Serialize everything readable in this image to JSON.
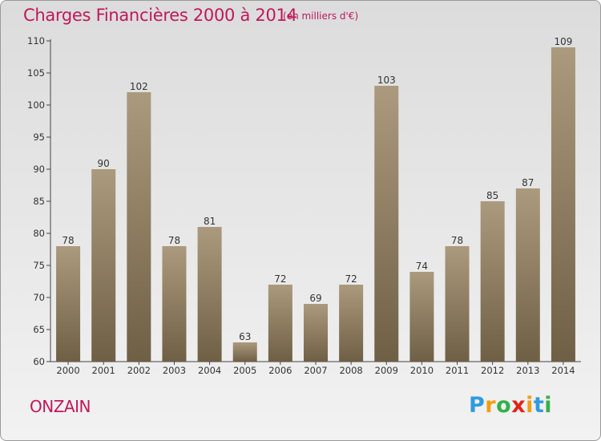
{
  "title": "Charges Financières 2000 à 2014",
  "unit": "(en milliers d'€)",
  "commune": "ONZAIN",
  "logo": {
    "letters": [
      "P",
      "r",
      "o",
      "x",
      "i",
      "t",
      "i"
    ],
    "colors": [
      "#2f9be0",
      "#f39c12",
      "#35b04a",
      "#e2231a",
      "#f39c12",
      "#2f9be0",
      "#35b04a"
    ]
  },
  "colors": {
    "title": "#c0185a",
    "bar_light": "#ab9a7d",
    "bar_dark": "#6f5f45"
  },
  "chart_data": {
    "type": "bar",
    "categories": [
      "2000",
      "2001",
      "2002",
      "2003",
      "2004",
      "2005",
      "2006",
      "2007",
      "2008",
      "2009",
      "2010",
      "2011",
      "2012",
      "2013",
      "2014"
    ],
    "values": [
      78,
      90,
      102,
      78,
      81,
      63,
      72,
      69,
      72,
      103,
      74,
      78,
      85,
      87,
      109
    ],
    "ylim": [
      60,
      110
    ],
    "yticks": [
      60,
      65,
      70,
      75,
      80,
      85,
      90,
      95,
      100,
      105,
      110
    ],
    "grid": false,
    "data_labels": true
  }
}
